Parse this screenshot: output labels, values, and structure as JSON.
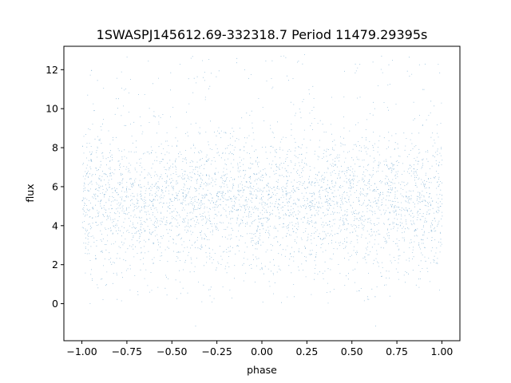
{
  "chart_data": {
    "type": "scatter",
    "title": "1SWASPJ145612.69-332318.7 Period 11479.29395s",
    "xlabel": "phase",
    "ylabel": "flux",
    "xlim": [
      -1.1,
      1.1
    ],
    "ylim": [
      -1.9,
      13.2
    ],
    "xticks": [
      -1.0,
      -0.75,
      -0.5,
      -0.25,
      0.0,
      0.25,
      0.5,
      0.75,
      1.0
    ],
    "xtick_labels": [
      "−1.00",
      "−0.75",
      "−0.50",
      "−0.25",
      "0.00",
      "0.25",
      "0.50",
      "0.75",
      "1.00"
    ],
    "yticks": [
      0,
      2,
      4,
      6,
      8,
      10,
      12
    ],
    "ytick_labels": [
      "0",
      "2",
      "4",
      "6",
      "8",
      "10",
      "12"
    ],
    "grid": false,
    "marker_color": "#1f77b4",
    "series": [
      {
        "x_range": [
          -1.0,
          1.0
        ],
        "point_count": 60000,
        "flux_center": 5.2,
        "flux_spread": 1.7,
        "flux_range": [
          0.0,
          12.8
        ],
        "outliers": [
          {
            "x": -0.37,
            "y": -1.15
          },
          {
            "x": 0.63,
            "y": -1.15
          }
        ]
      }
    ]
  }
}
